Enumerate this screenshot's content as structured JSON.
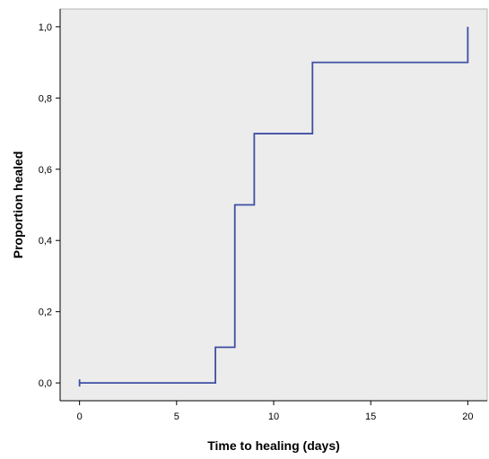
{
  "chart_data": {
    "type": "line",
    "step": true,
    "title": "",
    "xlabel": "Time to healing (days)",
    "ylabel": "Proportion healed",
    "xlim": [
      -1,
      21
    ],
    "ylim": [
      -0.05,
      1.05
    ],
    "xticks": [
      0,
      5,
      10,
      15,
      20
    ],
    "xtick_labels": [
      "0",
      "5",
      "10",
      "15",
      "20"
    ],
    "yticks": [
      0.0,
      0.2,
      0.4,
      0.6,
      0.8,
      1.0
    ],
    "ytick_labels": [
      "0,0",
      "0,2",
      "0,4",
      "0,6",
      "0,8",
      "1,0"
    ],
    "grid": false,
    "legend": "none",
    "series": [
      {
        "x": [
          0,
          7,
          8,
          9,
          12,
          20
        ],
        "y": [
          0.0,
          0.1,
          0.5,
          0.7,
          0.9,
          1.0
        ]
      }
    ],
    "censored_marks": [
      {
        "x": 0,
        "y": 0.0
      }
    ],
    "colors": {
      "line": "#3f4fa3",
      "plot_background": "#ececec",
      "axis": "#000000"
    }
  }
}
